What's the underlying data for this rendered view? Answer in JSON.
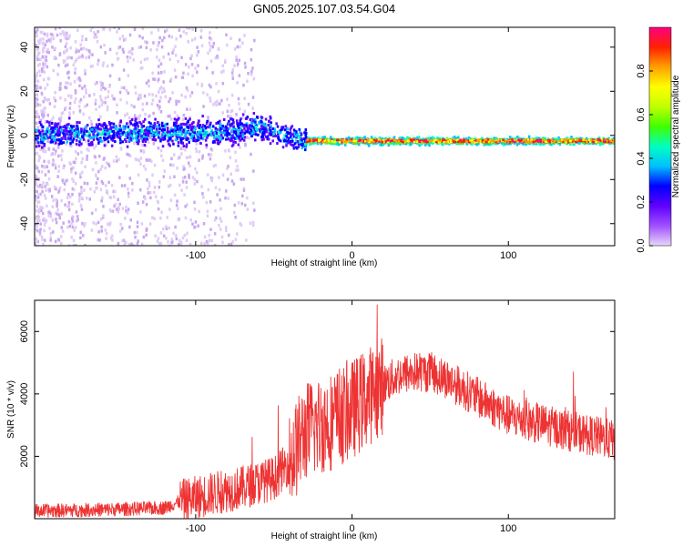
{
  "title": "GN05.2025.107.03.54.G04",
  "chart_data": [
    {
      "type": "heatmap",
      "xlabel": "Height of straight line (km)",
      "ylabel": "Frequency (Hz)",
      "xlim": [
        -203,
        168
      ],
      "ylim": [
        -50,
        49
      ],
      "x_ticks": [
        -100,
        0,
        100
      ],
      "y_ticks": [
        -40,
        -20,
        0,
        20,
        40
      ],
      "colorbar": {
        "label": "Normalized spectral amplitude",
        "range": [
          0,
          1
        ],
        "ticks": [
          "0.0",
          "0.2",
          "0.4",
          "0.6",
          "0.8"
        ],
        "colors": [
          "#e8d8f8",
          "#a050ff",
          "#6000ff",
          "#0000ff",
          "#00c0ff",
          "#00ffc0",
          "#40ff00",
          "#c0ff00",
          "#ffff00",
          "#ffa000",
          "#ff2000",
          "#ff0080"
        ]
      },
      "ridge": [
        [
          -200,
          1
        ],
        [
          -120,
          2
        ],
        [
          -80,
          2
        ],
        [
          -60,
          5
        ],
        [
          -40,
          0
        ],
        [
          -30,
          -2
        ],
        [
          0,
          -2
        ],
        [
          50,
          -2
        ],
        [
          100,
          -2
        ],
        [
          168,
          -2
        ]
      ]
    },
    {
      "type": "line",
      "xlabel": "Height of straight line (km)",
      "ylabel": "SNR (10 * v/v)",
      "xlim": [
        -203,
        168
      ],
      "ylim": [
        0,
        7000
      ],
      "x_ticks": [
        -100,
        0,
        100
      ],
      "y_ticks": [
        2000,
        4000,
        6000
      ],
      "color": "#ee3333",
      "series": [
        {
          "x": [
            -200,
            -150,
            -120,
            -110,
            -90,
            -70,
            -50,
            -40,
            -35,
            -30,
            -20,
            -10,
            0,
            10,
            20,
            30,
            40,
            50,
            60,
            70,
            80,
            90,
            100,
            110,
            120,
            140,
            160,
            168
          ],
          "y": [
            250,
            300,
            350,
            550,
            800,
            1000,
            1300,
            1800,
            2300,
            2800,
            3000,
            3200,
            3500,
            3900,
            4300,
            4600,
            4700,
            4700,
            4500,
            4200,
            3900,
            3600,
            3300,
            3150,
            3050,
            2800,
            2600,
            2500
          ]
        }
      ]
    }
  ]
}
